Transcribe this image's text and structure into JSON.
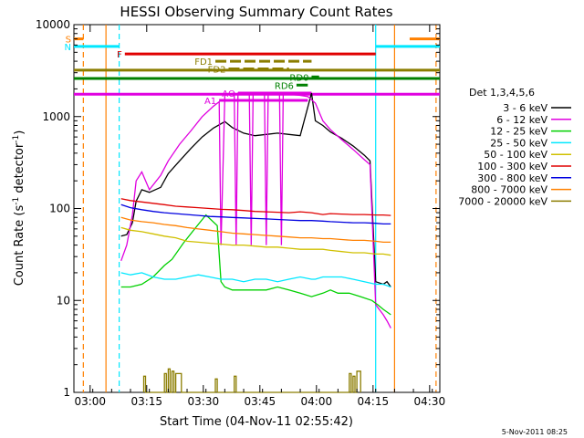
{
  "colors": {
    "black": "#000000",
    "magenta": "#e000e0",
    "green": "#00d000",
    "cyan": "#00e8ff",
    "yellow": "#d0c000",
    "red": "#e00000",
    "blue": "#0000e0",
    "orange": "#ff8000",
    "olive": "#8b7d00",
    "darkgreen": "#008000"
  },
  "footer_date": "5-Nov-2011 08:25",
  "chart_data": {
    "type": "line",
    "title": "HESSI Observing Summary Count Rates",
    "xlabel": "Start Time (04-Nov-11 02:55:42)",
    "ylabel_main": "Count Rate (s",
    "ylabel_sup1": "-1",
    "ylabel_mid": " detector",
    "ylabel_sup2": "-1",
    "ylabel_end": ")",
    "x_unit": "minutes after 02:55:42",
    "xlim": [
      0,
      97
    ],
    "ylim": [
      1,
      10000
    ],
    "yscale": "log",
    "x_ticks": [
      {
        "t": 4.3,
        "label": "03:00"
      },
      {
        "t": 19.3,
        "label": "03:15"
      },
      {
        "t": 34.3,
        "label": "03:30"
      },
      {
        "t": 49.3,
        "label": "03:45"
      },
      {
        "t": 64.3,
        "label": "04:00"
      },
      {
        "t": 79.3,
        "label": "04:15"
      },
      {
        "t": 94.3,
        "label": "04:30"
      }
    ],
    "y_ticks": [
      {
        "v": 1,
        "label": "1"
      },
      {
        "v": 10,
        "label": "10"
      },
      {
        "v": 100,
        "label": "100"
      },
      {
        "v": 1000,
        "label": "1000"
      },
      {
        "v": 10000,
        "label": "10000"
      }
    ],
    "legend_title": "Det 1,3,4,5,6",
    "legend_placement": "right",
    "series": [
      {
        "name": "3 - 6 keV",
        "color": "#000000",
        "x": [
          12.5,
          14,
          15.5,
          16.5,
          18,
          20,
          23,
          25,
          28,
          31,
          34,
          37,
          40,
          42,
          45,
          48,
          51,
          54,
          57,
          60,
          63,
          64,
          66,
          68,
          71,
          74,
          77,
          78.5,
          80,
          82,
          83,
          84
        ],
        "y": [
          50,
          52,
          70,
          120,
          160,
          150,
          170,
          240,
          330,
          450,
          600,
          750,
          880,
          760,
          660,
          620,
          640,
          660,
          640,
          620,
          1800,
          900,
          800,
          680,
          580,
          480,
          380,
          330,
          16,
          15,
          16,
          14
        ]
      },
      {
        "name": "6 - 12 keV",
        "color": "#e000e0",
        "x": [
          12.5,
          14,
          15.5,
          16.5,
          18,
          20,
          23,
          25,
          28,
          31,
          34,
          37,
          38.5,
          39,
          40,
          41,
          42.5,
          43,
          43.5,
          45,
          46.5,
          47,
          47.5,
          49,
          50.5,
          51,
          51.5,
          53,
          54.5,
          55,
          55.5,
          57,
          60,
          62,
          64,
          66,
          68,
          71,
          74,
          77,
          78.5,
          80,
          82,
          83,
          84
        ],
        "y": [
          27,
          40,
          85,
          200,
          250,
          160,
          230,
          330,
          500,
          700,
          1000,
          1300,
          1450,
          40,
          1700,
          1750,
          1800,
          40,
          1800,
          1800,
          1800,
          40,
          1800,
          1800,
          1800,
          40,
          1800,
          1800,
          1800,
          40,
          1800,
          1750,
          1700,
          1650,
          1400,
          900,
          720,
          560,
          440,
          340,
          300,
          9,
          7,
          6,
          5
        ]
      },
      {
        "name": "12 - 25 keV",
        "color": "#00d000",
        "x": [
          12.5,
          15,
          18,
          21,
          24,
          26,
          29,
          32,
          35,
          38,
          39,
          40,
          42,
          45,
          48,
          51,
          54,
          57,
          60,
          63,
          66,
          68,
          70,
          73,
          76,
          79,
          80.5,
          82,
          84
        ],
        "y": [
          14,
          14,
          15,
          18,
          24,
          28,
          42,
          60,
          85,
          65,
          16,
          14,
          13,
          13,
          13,
          13,
          14,
          13,
          12,
          11,
          12,
          13,
          12,
          12,
          11,
          10,
          9,
          8,
          7
        ]
      },
      {
        "name": "25 - 50 keV",
        "color": "#00e8ff",
        "x": [
          12.5,
          15,
          18,
          21,
          24,
          27,
          30,
          33,
          36,
          39,
          42,
          45,
          48,
          51,
          54,
          57,
          60,
          63,
          64,
          66,
          68,
          71,
          74,
          77,
          80,
          82,
          84
        ],
        "y": [
          20,
          19,
          20,
          18,
          17,
          17,
          18,
          19,
          18,
          17,
          17,
          16,
          17,
          17,
          16,
          17,
          18,
          17,
          17,
          18,
          18,
          18,
          17,
          16,
          15,
          15,
          14
        ]
      },
      {
        "name": "50 - 100 keV",
        "color": "#d0c000",
        "x": [
          12.5,
          15,
          18,
          21,
          24,
          27,
          30,
          33,
          36,
          39,
          42,
          45,
          48,
          51,
          54,
          57,
          60,
          63,
          66,
          68,
          71,
          74,
          77,
          80,
          82,
          84
        ],
        "y": [
          62,
          58,
          56,
          53,
          50,
          48,
          44,
          43,
          42,
          41,
          40,
          40,
          39,
          38,
          38,
          37,
          36,
          36,
          36,
          35,
          34,
          33,
          33,
          32,
          32,
          31
        ]
      },
      {
        "name": "100 - 300 keV",
        "color": "#e00000",
        "x": [
          12.5,
          15,
          18,
          21,
          24,
          27,
          30,
          33,
          36,
          39,
          42,
          45,
          48,
          51,
          54,
          57,
          60,
          63,
          66,
          68,
          71,
          74,
          77,
          80,
          82,
          84
        ],
        "y": [
          128,
          122,
          118,
          114,
          110,
          106,
          104,
          102,
          100,
          98,
          97,
          95,
          93,
          92,
          91,
          90,
          92,
          90,
          86,
          88,
          87,
          86,
          86,
          85,
          85,
          84
        ]
      },
      {
        "name": "300 - 800 keV",
        "color": "#0000e0",
        "x": [
          12.5,
          15,
          18,
          21,
          24,
          27,
          30,
          33,
          36,
          39,
          42,
          45,
          48,
          51,
          54,
          57,
          60,
          63,
          66,
          68,
          71,
          74,
          77,
          80,
          82,
          84
        ],
        "y": [
          110,
          102,
          97,
          93,
          90,
          88,
          86,
          84,
          82,
          81,
          80,
          79,
          78,
          77,
          76,
          75,
          74,
          74,
          73,
          72,
          71,
          70,
          70,
          69,
          68,
          68
        ]
      },
      {
        "name": "800 - 7000 keV",
        "color": "#ff8000",
        "x": [
          12.5,
          15,
          18,
          21,
          24,
          27,
          30,
          33,
          36,
          39,
          42,
          45,
          48,
          51,
          54,
          57,
          60,
          63,
          66,
          68,
          71,
          74,
          77,
          80,
          82,
          84
        ],
        "y": [
          80,
          75,
          72,
          70,
          67,
          65,
          62,
          60,
          58,
          56,
          54,
          53,
          52,
          51,
          50,
          49,
          48,
          48,
          47,
          47,
          46,
          45,
          45,
          44,
          43,
          43
        ]
      },
      {
        "name": "7000 - 20000 keV",
        "color": "#8b7d00",
        "x": [
          18.5,
          18.5,
          19,
          19,
          24,
          24,
          24.5,
          24.5,
          25,
          25,
          25.5,
          25.5,
          26,
          26,
          26.5,
          26.5,
          27,
          27,
          28.5,
          28.5,
          37.5,
          37.5,
          38,
          38,
          42.5,
          42.5,
          43,
          43,
          73,
          73,
          73.5,
          73.5,
          74,
          74,
          74.5,
          74.5,
          75,
          75,
          76,
          76
        ],
        "y": [
          1,
          1.5,
          1.5,
          1,
          1,
          1.6,
          1.6,
          1,
          1,
          1.8,
          1.8,
          1,
          1,
          1.7,
          1.7,
          1,
          1,
          1.6,
          1.6,
          1,
          1,
          1.4,
          1.4,
          1,
          1,
          1.5,
          1.5,
          1,
          1,
          1.6,
          1.6,
          1,
          1,
          1.5,
          1.5,
          1,
          1,
          1.7,
          1.7,
          1
        ]
      }
    ],
    "vertical_markers": [
      {
        "t": 2.5,
        "color": "#ff8000",
        "style": "dashed"
      },
      {
        "t": 8.5,
        "color": "#ff8000",
        "style": "solid"
      },
      {
        "t": 12,
        "color": "#00e8ff",
        "style": "dashed"
      },
      {
        "t": 80,
        "color": "#00e8ff",
        "style": "solid"
      },
      {
        "t": 85,
        "color": "#ff8000",
        "style": "solid"
      },
      {
        "t": 96,
        "color": "#ff8000",
        "style": "dashed"
      }
    ],
    "flag_bars": [
      {
        "label": "S",
        "t0": 0,
        "t1": 2.5,
        "y": 7000,
        "color": "#ff8000"
      },
      {
        "label": "",
        "t0": 89,
        "t1": 97,
        "y": 7000,
        "color": "#ff8000"
      },
      {
        "label": "N",
        "t0": 0,
        "t1": 12,
        "y": 5800,
        "color": "#00e8ff"
      },
      {
        "label": "",
        "t0": 80,
        "t1": 97,
        "y": 5800,
        "color": "#00e8ff"
      },
      {
        "label": "F",
        "t0": 13.5,
        "t1": 80,
        "y": 4800,
        "color": "#e00000"
      },
      {
        "label": "FD1",
        "t0": 37.5,
        "t1": 63,
        "y": 4000,
        "color": "#8b7d00",
        "dotted": true
      },
      {
        "label": "FD2",
        "t0": 41,
        "t1": 57,
        "y": 3300,
        "color": "#8b7d00",
        "dotted": true
      },
      {
        "label": "",
        "t0": 0,
        "t1": 97,
        "y": 3200,
        "color": "#8b7d00"
      },
      {
        "label": "",
        "t0": 0,
        "t1": 97,
        "y": 2600,
        "color": "#008000"
      },
      {
        "label": "RD0",
        "t0": 63,
        "t1": 65,
        "y": 2700,
        "color": "#008000"
      },
      {
        "label": "RD6",
        "t0": 59,
        "t1": 62,
        "y": 2200,
        "color": "#008000"
      },
      {
        "label": "AO",
        "t0": 43.5,
        "t1": 63,
        "y": 1800,
        "color": "#e000e0"
      },
      {
        "label": "",
        "t0": 0,
        "t1": 97,
        "y": 1750,
        "color": "#e000e0"
      },
      {
        "label": "A1",
        "t0": 38.5,
        "t1": 62,
        "y": 1500,
        "color": "#e000e0"
      }
    ]
  }
}
